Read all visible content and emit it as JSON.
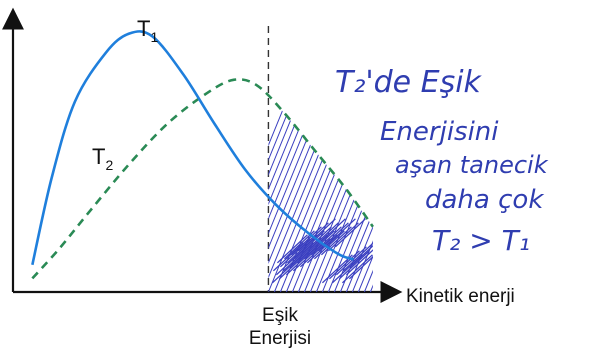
{
  "chart_data": {
    "type": "line",
    "title": "",
    "xlabel": "Kinetik enerji",
    "ylabel": "",
    "threshold_label": [
      "Eşik",
      "Enerjisi"
    ],
    "series": [
      {
        "name": "T1",
        "name_base": "T",
        "name_sub": "1",
        "color": "#1f7fdc",
        "dash": "solid",
        "points": [
          [
            0.05,
            0.1
          ],
          [
            0.1,
            0.42
          ],
          [
            0.16,
            0.7
          ],
          [
            0.24,
            0.88
          ],
          [
            0.3,
            0.95
          ],
          [
            0.36,
            0.94
          ],
          [
            0.44,
            0.8
          ],
          [
            0.52,
            0.62
          ],
          [
            0.6,
            0.45
          ],
          [
            0.68,
            0.32
          ],
          [
            0.76,
            0.22
          ],
          [
            0.84,
            0.14
          ],
          [
            0.88,
            0.12
          ]
        ]
      },
      {
        "name": "T2",
        "name_base": "T",
        "name_sub": "2",
        "color": "#2a8a55",
        "dash": "dashed",
        "points": [
          [
            0.05,
            0.05
          ],
          [
            0.12,
            0.16
          ],
          [
            0.2,
            0.3
          ],
          [
            0.3,
            0.47
          ],
          [
            0.4,
            0.62
          ],
          [
            0.5,
            0.73
          ],
          [
            0.57,
            0.78
          ],
          [
            0.63,
            0.76
          ],
          [
            0.7,
            0.66
          ],
          [
            0.78,
            0.52
          ],
          [
            0.86,
            0.38
          ],
          [
            0.93,
            0.24
          ]
        ]
      }
    ],
    "threshold_x": 0.66,
    "hatch_color": "#3a3fc0",
    "handwritten_note": [
      "T₂'de Eşik",
      "Enerjisini",
      "aşan tanecik",
      "daha çok",
      "T₂ > T₁"
    ],
    "grid": false
  }
}
